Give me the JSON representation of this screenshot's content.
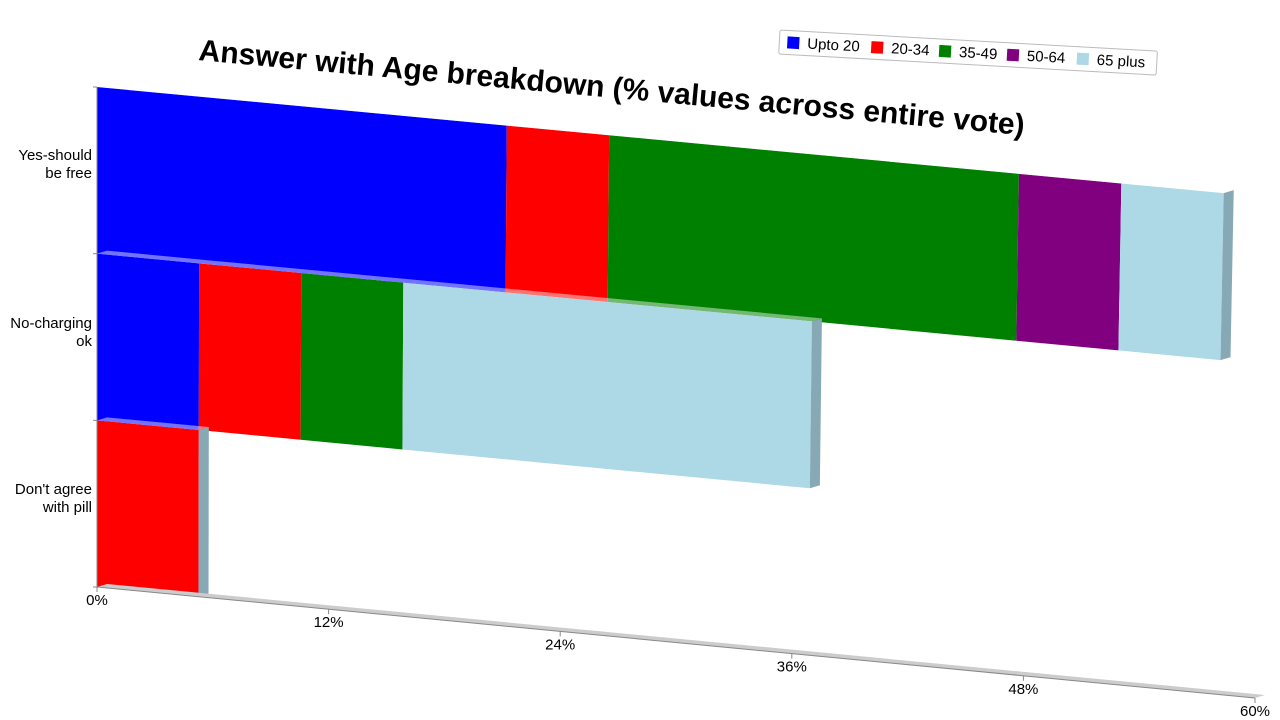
{
  "chart_data": {
    "type": "bar",
    "orientation": "horizontal",
    "stacked": true,
    "title": "Answer with Age breakdown (% values across entire vote)",
    "categories": [
      "Yes-should be free",
      "No-charging ok",
      "Don't agree with pill"
    ],
    "series": [
      {
        "name": "Upto 20",
        "color": "#0000ff",
        "values": [
          21.05,
          5.26,
          null
        ]
      },
      {
        "name": "20-34",
        "color": "#ff0000",
        "values": [
          5.26,
          5.26,
          5.26
        ]
      },
      {
        "name": "35-49",
        "color": "#008000",
        "values": [
          21.05,
          5.26,
          null
        ]
      },
      {
        "name": "50-64",
        "color": "#800080",
        "values": [
          5.26,
          null,
          null
        ]
      },
      {
        "name": "65 plus",
        "color": "#add8e6",
        "values": [
          5.26,
          21.05,
          null
        ]
      }
    ],
    "xlim": [
      0,
      60
    ],
    "xticks": [
      {
        "value": 0,
        "label": "0%"
      },
      {
        "value": 12,
        "label": "12%"
      },
      {
        "value": 24,
        "label": "24%"
      },
      {
        "value": 36,
        "label": "36%"
      },
      {
        "value": 48,
        "label": "48%"
      },
      {
        "value": 60,
        "label": "60%"
      }
    ],
    "legend": "top-right"
  }
}
